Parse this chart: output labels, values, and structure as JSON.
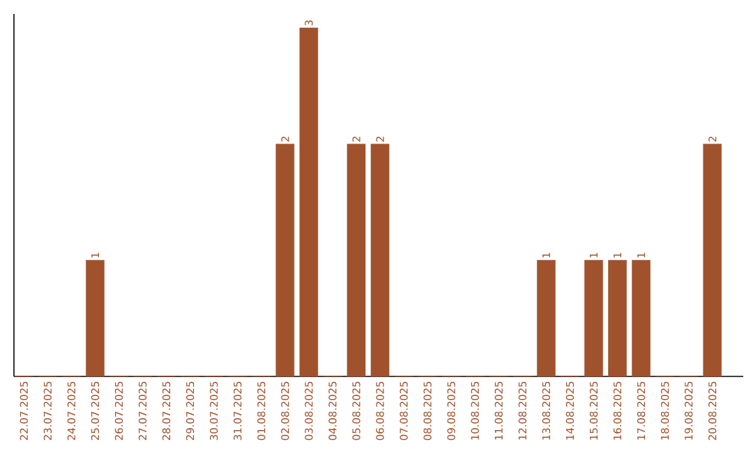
{
  "chart_data": {
    "type": "bar",
    "categories": [
      "22.07.2025",
      "23.07.2025",
      "24.07.2025",
      "25.07.2025",
      "26.07.2025",
      "27.07.2025",
      "28.07.2025",
      "29.07.2025",
      "30.07.2025",
      "31.07.2025",
      "01.08.2025",
      "02.08.2025",
      "03.08.2025",
      "04.08.2025",
      "05.08.2025",
      "06.08.2025",
      "07.08.2025",
      "08.08.2025",
      "09.08.2025",
      "10.08.2025",
      "11.08.2025",
      "12.08.2025",
      "13.08.2025",
      "14.08.2025",
      "15.08.2025",
      "16.08.2025",
      "17.08.2025",
      "18.08.2025",
      "19.08.2025",
      "20.08.2025"
    ],
    "values": [
      0,
      0,
      0,
      1,
      0,
      0,
      0,
      0,
      0,
      0,
      0,
      2,
      3,
      0,
      2,
      2,
      0,
      0,
      0,
      0,
      0,
      0,
      1,
      0,
      1,
      1,
      1,
      0,
      0,
      2
    ],
    "value_labels": [
      null,
      null,
      null,
      "1",
      null,
      null,
      null,
      null,
      null,
      null,
      null,
      "2",
      "3",
      null,
      "2",
      "2",
      null,
      null,
      null,
      null,
      null,
      null,
      "1",
      null,
      "1",
      "1",
      "1",
      null,
      null,
      "2"
    ],
    "color": "#a0522d"
  }
}
